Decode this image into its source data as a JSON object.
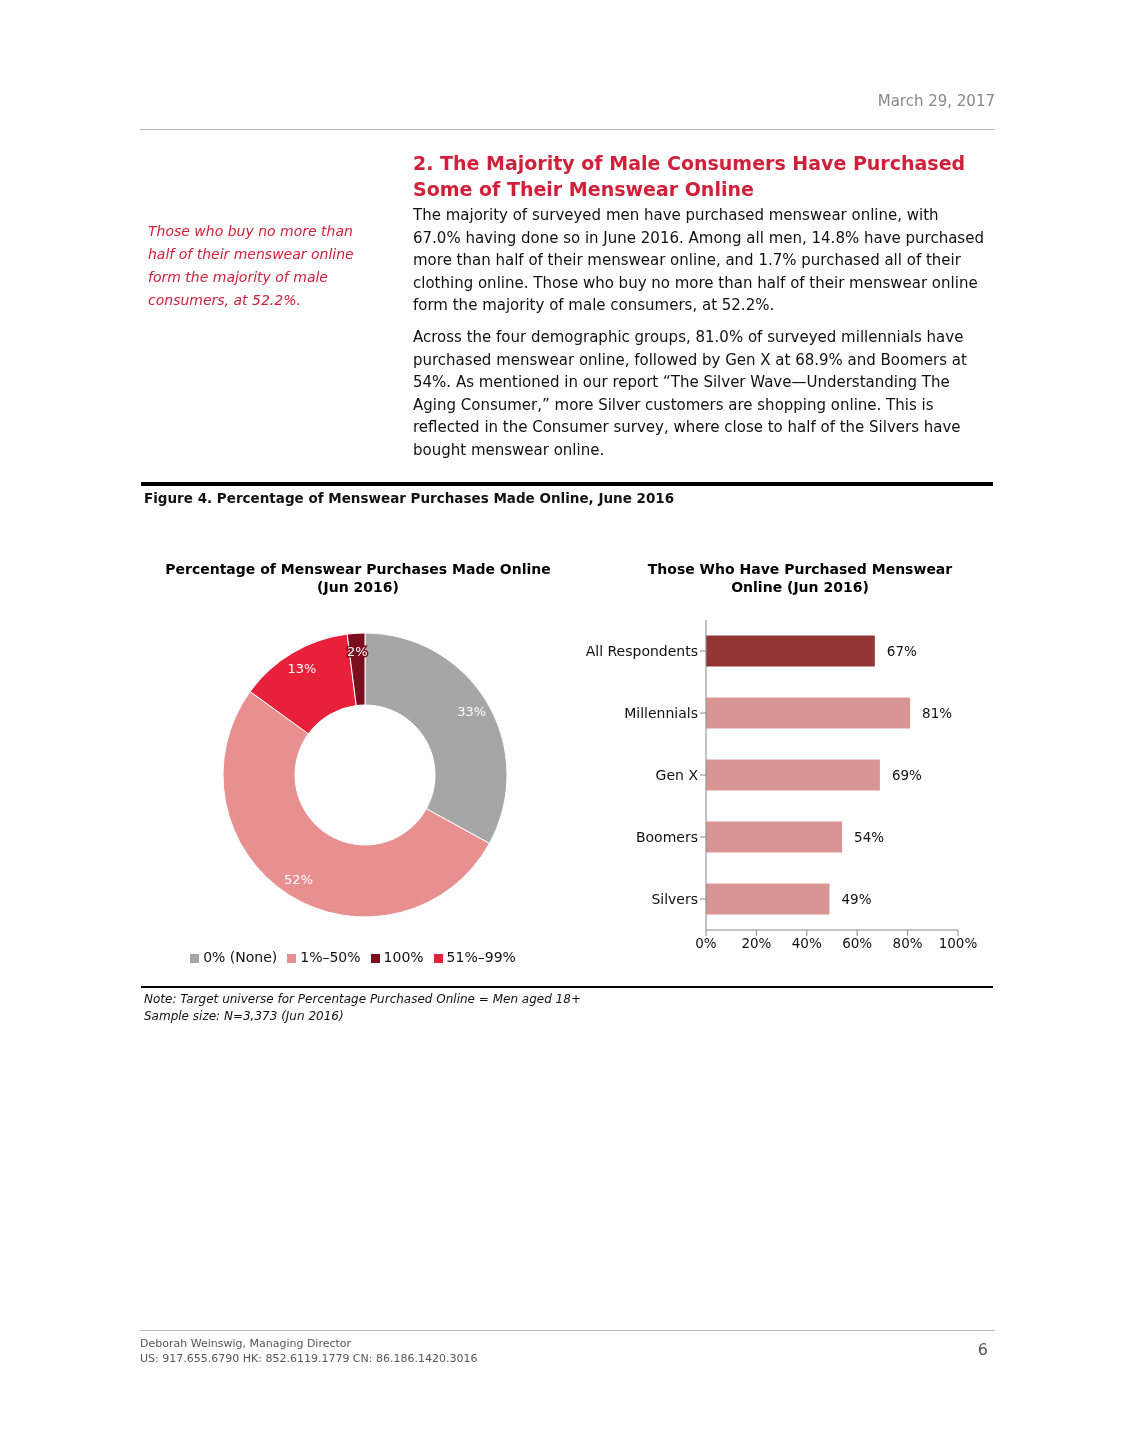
{
  "chart_data": [
    {
      "type": "donut",
      "title": "Percentage of Menswear Purchases Made Online (Jun 2016)",
      "categories": [
        "0% (None)",
        "1%–50%",
        "51%–99%",
        "100%"
      ],
      "values": [
        33,
        52,
        13,
        2
      ],
      "colors": [
        "#a6a6a6",
        "#e88f8f",
        "#e8203a",
        "#7a0e1f"
      ],
      "data_labels": true,
      "value_labels": [
        "33%",
        "52%",
        "13%",
        "2%"
      ],
      "legend": "bottom",
      "annotations": [
        "March 29, 2017",
        "2. The Majority of Male Consumers Have Purchased Some of Their Menswear Online",
        "The majority of surveyed men have purchased menswear online, with 67.0% having done so in June 2016. Among all men, 14.8% have purchased more than half of their menswear online, and 1.7% purchased all of their clothing online. Those who buy no more than half of their menswear online form the majority of male consumers, at 52.2%.",
        "Across the four demographic groups, 81.0% of surveyed millennials have purchased menswear online, followed by Gen X at 68.9% and Boomers at 54%. As mentioned in our report “The Silver Wave—Understanding The Aging Consumer,” more Silver customers are shopping online. This is reflected in the Consumer survey, where close to half of the Silvers have bought menswear online.",
        "Those who buy no more than half of their menswear online form the majority of male consumers, at 52.2%.",
        "Figure 4. Percentage of Menswear Purchases Made Online, June 2016",
        "Note: Target universe for Percentage Purchased Online = Men aged 18+",
        "Sample size: N=3,373 (Jun 2016)",
        "Deborah Weinswig, Managing Director",
        "US: 917.655.6790  HK: 852.6119.1779  CN: 86.186.1420.3016",
        "6"
      ]
    },
    {
      "type": "bar",
      "orientation": "horizontal",
      "title": "Those Who Have Purchased Menswear Online (Jun 2016)",
      "categories": [
        "All Respondents",
        "Millennials",
        "Gen X",
        "Boomers",
        "Silvers"
      ],
      "values": [
        67,
        81,
        69,
        54,
        49
      ],
      "colors": [
        "#943634",
        "#d99594",
        "#d99594",
        "#d99594",
        "#d99594"
      ],
      "value_labels": [
        "67%",
        "81%",
        "69%",
        "54%",
        "49%"
      ],
      "xlim": [
        0,
        100
      ],
      "xticks": [
        {
          "value": 0,
          "label": "0%"
        },
        {
          "value": 20,
          "label": "20%"
        },
        {
          "value": 40,
          "label": "40%"
        },
        {
          "value": 60,
          "label": "60%"
        },
        {
          "value": 80,
          "label": "80%"
        },
        {
          "value": 100,
          "label": "100%"
        }
      ],
      "grid": false
    }
  ]
}
